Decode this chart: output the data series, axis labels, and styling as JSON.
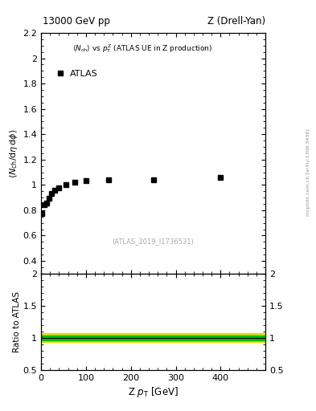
{
  "title_left": "13000 GeV pp",
  "title_right": "Z (Drell-Yan)",
  "legend_label": "ATLAS",
  "watermark": "(ATLAS_2019_I1736531)",
  "ylabel_main": "<N_{ch}/dη dφ>",
  "ylabel_ratio": "Ratio to ATLAS",
  "xlabel": "Z p_{T} [GeV]",
  "xlim": [
    0,
    500
  ],
  "ylim_main": [
    0.3,
    2.2
  ],
  "ylim_ratio": [
    0.5,
    2.0
  ],
  "yticks_main": [
    0.4,
    0.6,
    0.8,
    1.0,
    1.2,
    1.4,
    1.6,
    1.8,
    2.0,
    2.2
  ],
  "ytick_labels_main": [
    "0.4",
    "0.6",
    "0.8",
    "1",
    "1.2",
    "1.4",
    "1.6",
    "1.8",
    "2",
    "2.2"
  ],
  "yticks_ratio": [
    0.5,
    1.0,
    1.5,
    2.0
  ],
  "ytick_labels_ratio": [
    "0.5",
    "1",
    "1.5",
    "2"
  ],
  "data_x": [
    2.5,
    7.5,
    12.5,
    17.5,
    22.5,
    30,
    40,
    55,
    75,
    100,
    150,
    250,
    400
  ],
  "data_y": [
    0.775,
    0.845,
    0.855,
    0.895,
    0.93,
    0.955,
    0.975,
    1.0,
    1.02,
    1.035,
    1.04,
    1.04,
    1.06
  ],
  "ratio_line_y": 1.0,
  "ratio_band_green_lo": 0.965,
  "ratio_band_green_hi": 1.035,
  "ratio_band_yellow_lo": 0.93,
  "ratio_band_yellow_hi": 1.07,
  "band_color_green": "#00bb00",
  "band_color_yellow": "#dddd00",
  "marker_color": "black",
  "marker_size": 5,
  "right_axis_label": "mcplots.cern.ch [arXiv:1306.3436]",
  "background_color": "white"
}
